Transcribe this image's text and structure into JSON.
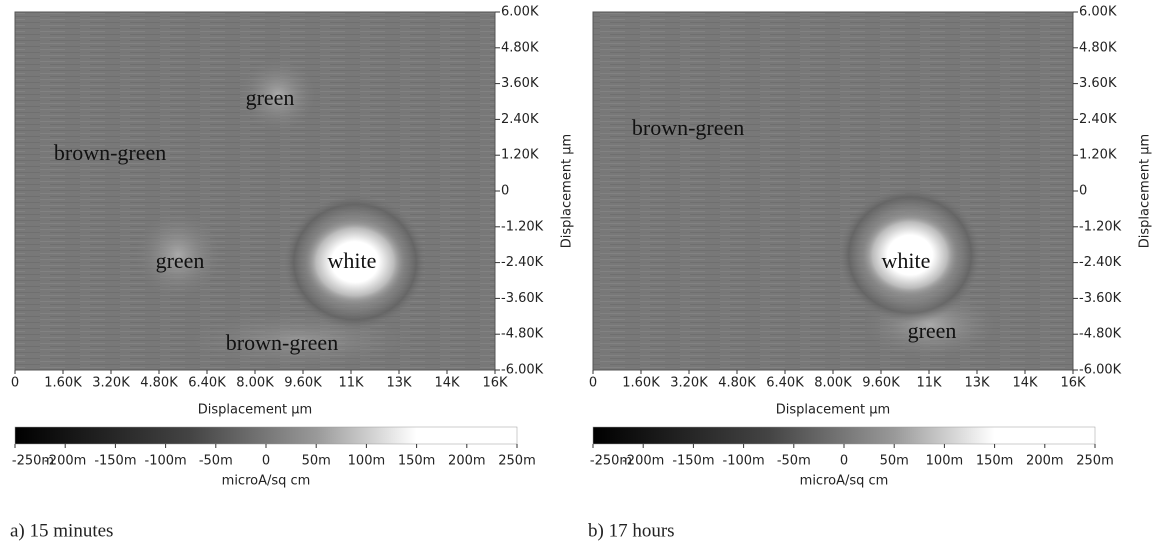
{
  "chart_data": [
    {
      "type": "heatmap",
      "caption": "a) 15 minutes",
      "xlabel": "Displacement µm",
      "ylabel": "Displacement µm",
      "xlim": [
        0,
        16000
      ],
      "ylim": [
        -6000,
        6000
      ],
      "xticks": [
        0,
        {
          "value": 1600,
          "label": "1.60K"
        },
        {
          "value": 3200,
          "label": "3.20K"
        },
        {
          "value": 4800,
          "label": "4.80K"
        },
        {
          "value": 6400,
          "label": "6.40K"
        },
        {
          "value": 8000,
          "label": "8.00K"
        },
        {
          "value": 9600,
          "label": "9.60K"
        },
        {
          "value": 11200,
          "label": "11K"
        },
        {
          "value": 12800,
          "label": "13K"
        },
        {
          "value": 14400,
          "label": "14K"
        },
        {
          "value": 16000,
          "label": "16K"
        }
      ],
      "yticks": [
        {
          "value": 6000,
          "label": "6.00K"
        },
        {
          "value": 4800,
          "label": "4.80K"
        },
        {
          "value": 3600,
          "label": "3.60K"
        },
        {
          "value": 2400,
          "label": "2.40K"
        },
        {
          "value": 1200,
          "label": "1.20K"
        },
        0,
        {
          "value": -1200,
          "label": "-1.20K"
        },
        {
          "value": -2400,
          "label": "-2.40K"
        },
        {
          "value": -3600,
          "label": "-3.60K"
        },
        {
          "value": -4800,
          "label": "-4.80K"
        },
        {
          "value": -6000,
          "label": "-6.00K"
        }
      ],
      "colorbar": {
        "label": "microA/sq cm",
        "lim": [
          -0.25,
          0.25
        ],
        "ticks": [
          {
            "value": -0.25,
            "label": "-250m"
          },
          {
            "value": -0.2,
            "label": "-200m"
          },
          {
            "value": -0.15,
            "label": "-150m"
          },
          {
            "value": -0.1,
            "label": "-100m"
          },
          {
            "value": -0.05,
            "label": "-50m"
          },
          0,
          {
            "value": 0.05,
            "label": "50m"
          },
          {
            "value": 0.1,
            "label": "100m"
          },
          {
            "value": 0.15,
            "label": "150m"
          },
          {
            "value": 0.2,
            "label": "200m"
          },
          {
            "value": 0.25,
            "label": "250m"
          }
        ]
      },
      "annotations": [
        {
          "text": "green",
          "x": 8500,
          "y": 3050
        },
        {
          "text": "brown-green",
          "x": 3170,
          "y": 1200
        },
        {
          "text": "green",
          "x": 5500,
          "y": -2410
        },
        {
          "text": "white",
          "x": 11230,
          "y": -2410
        },
        {
          "text": "brown-green",
          "x": 8900,
          "y": -5160
        }
      ]
    },
    {
      "type": "heatmap",
      "caption": "b) 17 hours",
      "xlabel": "Displacement µm",
      "ylabel": "Displacement µm",
      "xlim": [
        0,
        16000
      ],
      "ylim": [
        -6000,
        6000
      ],
      "xticks": [
        0,
        {
          "value": 1600,
          "label": "1.60K"
        },
        {
          "value": 3200,
          "label": "3.20K"
        },
        {
          "value": 4800,
          "label": "4.80K"
        },
        {
          "value": 6400,
          "label": "6.40K"
        },
        {
          "value": 8000,
          "label": "8.00K"
        },
        {
          "value": 9600,
          "label": "9.60K"
        },
        {
          "value": 11200,
          "label": "11K"
        },
        {
          "value": 12800,
          "label": "13K"
        },
        {
          "value": 14400,
          "label": "14K"
        },
        {
          "value": 16000,
          "label": "16K"
        }
      ],
      "yticks": [
        {
          "value": 6000,
          "label": "6.00K"
        },
        {
          "value": 4800,
          "label": "4.80K"
        },
        {
          "value": 3600,
          "label": "3.60K"
        },
        {
          "value": 2400,
          "label": "2.40K"
        },
        {
          "value": 1200,
          "label": "1.20K"
        },
        0,
        {
          "value": -1200,
          "label": "-1.20K"
        },
        {
          "value": -2400,
          "label": "-2.40K"
        },
        {
          "value": -3600,
          "label": "-3.60K"
        },
        {
          "value": -4800,
          "label": "-4.80K"
        },
        {
          "value": -6000,
          "label": "-6.00K"
        }
      ],
      "colorbar": {
        "label": "microA/sq cm",
        "lim": [
          -0.25,
          0.25
        ],
        "ticks": [
          {
            "value": -0.25,
            "label": "-250m"
          },
          {
            "value": -0.2,
            "label": "-200m"
          },
          {
            "value": -0.15,
            "label": "-150m"
          },
          {
            "value": -0.1,
            "label": "-100m"
          },
          {
            "value": -0.05,
            "label": "-50m"
          },
          0,
          {
            "value": 0.05,
            "label": "50m"
          },
          {
            "value": 0.1,
            "label": "100m"
          },
          {
            "value": 0.15,
            "label": "150m"
          },
          {
            "value": 0.2,
            "label": "200m"
          },
          {
            "value": 0.25,
            "label": "250m"
          }
        ]
      },
      "annotations": [
        {
          "text": "brown-green",
          "x": 3170,
          "y": 2040
        },
        {
          "text": "white",
          "x": 10430,
          "y": -2410
        },
        {
          "text": "green",
          "x": 11300,
          "y": -4760
        }
      ]
    }
  ]
}
